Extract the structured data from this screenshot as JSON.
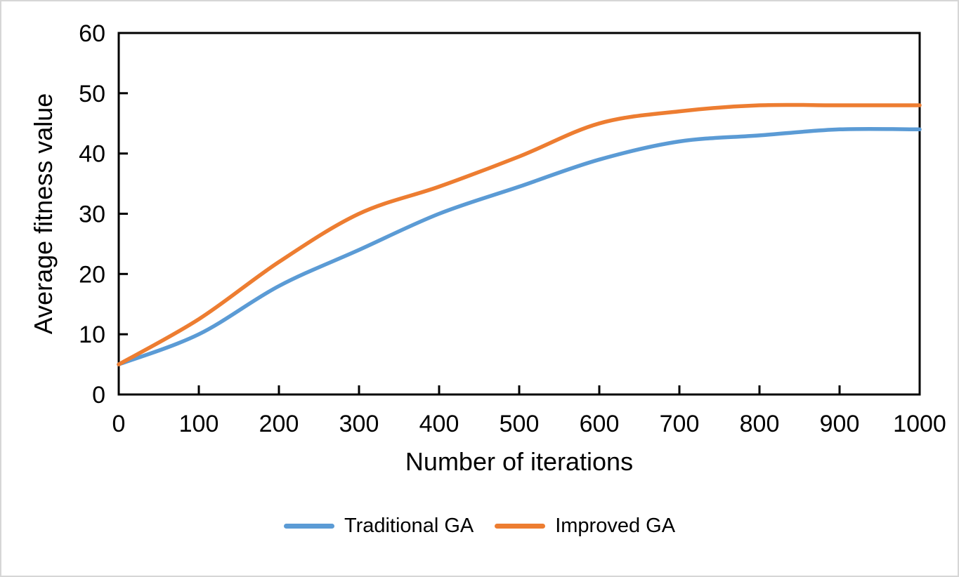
{
  "chart_data": {
    "type": "line",
    "title": "",
    "xlabel": "Number of iterations",
    "ylabel": "Average fitness value",
    "x": [
      0,
      100,
      200,
      300,
      400,
      500,
      600,
      700,
      800,
      900,
      1000
    ],
    "series": [
      {
        "name": "Traditional GA",
        "color": "#5B9BD5",
        "values": [
          5,
          10,
          18,
          24,
          30,
          34.5,
          39,
          42,
          43,
          44,
          44
        ]
      },
      {
        "name": "Improved GA",
        "color": "#ED7D31",
        "values": [
          5,
          12.5,
          22,
          30,
          34.5,
          39.5,
          45,
          47,
          48,
          48,
          48
        ]
      }
    ],
    "xlim": [
      0,
      1000
    ],
    "ylim": [
      0,
      60
    ],
    "x_ticks": [
      0,
      100,
      200,
      300,
      400,
      500,
      600,
      700,
      800,
      900,
      1000
    ],
    "y_ticks": [
      0,
      10,
      20,
      30,
      40,
      50,
      60
    ],
    "grid": "off",
    "legend_position": "bottom",
    "axis_color": "#000000",
    "line_width": 5.5
  }
}
